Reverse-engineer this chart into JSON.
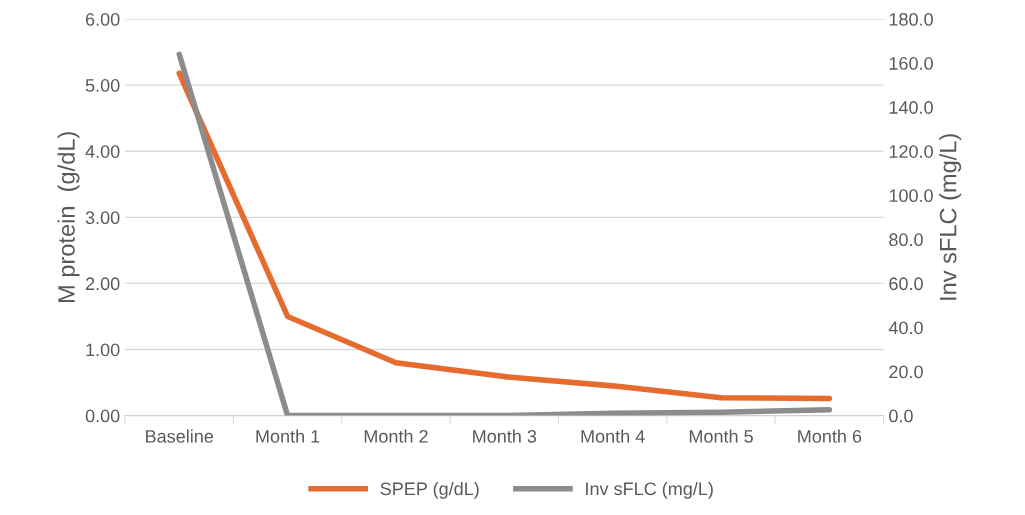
{
  "chart_data": {
    "type": "line",
    "ylabel": "M protein  (g/dL)",
    "y2label": "Inv sFLC (mg/L)",
    "categories": [
      "Baseline",
      "Month 1",
      "Month 2",
      "Month 3",
      "Month 4",
      "Month 5",
      "Month 6"
    ],
    "series": [
      {
        "name": "SPEP (g/dL)",
        "color": "#e56b2f",
        "values": [
          5.18,
          1.5,
          0.8,
          0.59,
          0.45,
          0.27,
          0.26
        ]
      },
      {
        "name": "Inv sFLC (mg/L)",
        "color": "#8c8c8c",
        "axis": "y2",
        "values": [
          164,
          0,
          0,
          0,
          1,
          1.5,
          2.7
        ]
      }
    ],
    "ylim": [
      0,
      6
    ],
    "yticks": [
      {
        "value": 0,
        "label": "0.00"
      },
      {
        "value": 1,
        "label": "1.00"
      },
      {
        "value": 2,
        "label": "2.00"
      },
      {
        "value": 3,
        "label": "3.00"
      },
      {
        "value": 4,
        "label": "4.00"
      },
      {
        "value": 5,
        "label": "5.00"
      },
      {
        "value": 6,
        "label": "6.00"
      }
    ],
    "y2lim": [
      0,
      180
    ],
    "y2ticks": [
      {
        "value": 0,
        "label": "0.0"
      },
      {
        "value": 20,
        "label": "20.0"
      },
      {
        "value": 40,
        "label": "40.0"
      },
      {
        "value": 60,
        "label": "60.0"
      },
      {
        "value": 80,
        "label": "80.0"
      },
      {
        "value": 100,
        "label": "100.0"
      },
      {
        "value": 120,
        "label": "120.0"
      },
      {
        "value": 140,
        "label": "140.0"
      },
      {
        "value": 160,
        "label": "160.0"
      },
      {
        "value": 180,
        "label": "180.0"
      }
    ],
    "grid": "y",
    "legend": "bottom",
    "marker": "none",
    "line_style": "solid"
  }
}
